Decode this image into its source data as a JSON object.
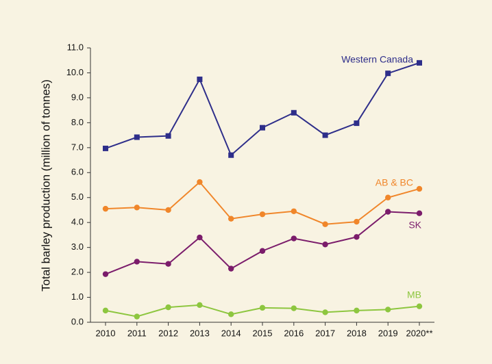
{
  "chart_data": {
    "type": "line",
    "y_label": "Total barley production (million of tonnes)",
    "categories": [
      "2010",
      "2011",
      "2012",
      "2013",
      "2014",
      "2015",
      "2016",
      "2017",
      "2018",
      "2019",
      "2020**"
    ],
    "series": [
      {
        "name": "Western Canada",
        "color": "#2e2e8a",
        "marker": "square",
        "values": [
          6.97,
          7.42,
          7.47,
          9.74,
          6.7,
          7.8,
          8.4,
          7.5,
          7.98,
          9.98,
          10.4
        ]
      },
      {
        "name": "AB & BC",
        "color": "#f0862a",
        "marker": "circle",
        "values": [
          4.55,
          4.6,
          4.5,
          5.62,
          4.15,
          4.33,
          4.45,
          3.93,
          4.03,
          5.0,
          5.35
        ]
      },
      {
        "name": "SK",
        "color": "#7b1c6b",
        "marker": "circle",
        "values": [
          1.93,
          2.43,
          2.34,
          3.4,
          2.15,
          2.86,
          3.36,
          3.12,
          3.42,
          4.43,
          4.37
        ]
      },
      {
        "name": "MB",
        "color": "#8dc63f",
        "marker": "circle",
        "values": [
          0.47,
          0.23,
          0.6,
          0.69,
          0.32,
          0.58,
          0.56,
          0.4,
          0.47,
          0.51,
          0.64
        ]
      }
    ],
    "ylim": [
      0,
      11
    ],
    "yticks": [
      {
        "value": 0,
        "label": "0.0"
      },
      {
        "value": 1,
        "label": "1.0"
      },
      {
        "value": 2,
        "label": "2.0"
      },
      {
        "value": 3,
        "label": "3.0"
      },
      {
        "value": 4,
        "label": "4.0"
      },
      {
        "value": 5,
        "label": "5.0"
      },
      {
        "value": 6,
        "label": "6.0"
      },
      {
        "value": 7,
        "label": "7.0"
      },
      {
        "value": 8,
        "label": "8.0"
      },
      {
        "value": 9,
        "label": "9.0"
      },
      {
        "value": 10,
        "label": "10.0"
      },
      {
        "value": 11,
        "label": "11.0"
      }
    ],
    "grid": false
  }
}
